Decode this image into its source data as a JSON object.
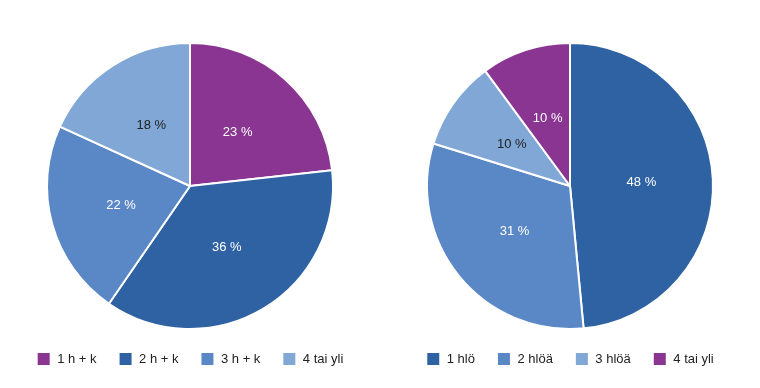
{
  "chart_data": [
    {
      "type": "pie",
      "categories": [
        "1 h + k",
        "2 h + k",
        "3 h + k",
        "4 tai yli"
      ],
      "values": [
        23,
        36,
        22,
        18
      ],
      "value_labels": [
        "23 %",
        "36 %",
        "22 %",
        "18 %"
      ],
      "colors": [
        "#8a3592",
        "#2e62a3",
        "#5a87c6",
        "#80a7d6"
      ],
      "data_labels": true,
      "legend": "bottom"
    },
    {
      "type": "pie",
      "categories": [
        "1 hlö",
        "2 hlöä",
        "3 hlöä",
        "4 tai yli"
      ],
      "values": [
        48,
        31,
        10,
        10
      ],
      "value_labels": [
        "48 %",
        "31 %",
        "10 %",
        "10 %"
      ],
      "colors": [
        "#2e62a3",
        "#5a87c6",
        "#80a7d6",
        "#8a3592"
      ],
      "data_labels": true,
      "legend": "bottom"
    }
  ]
}
